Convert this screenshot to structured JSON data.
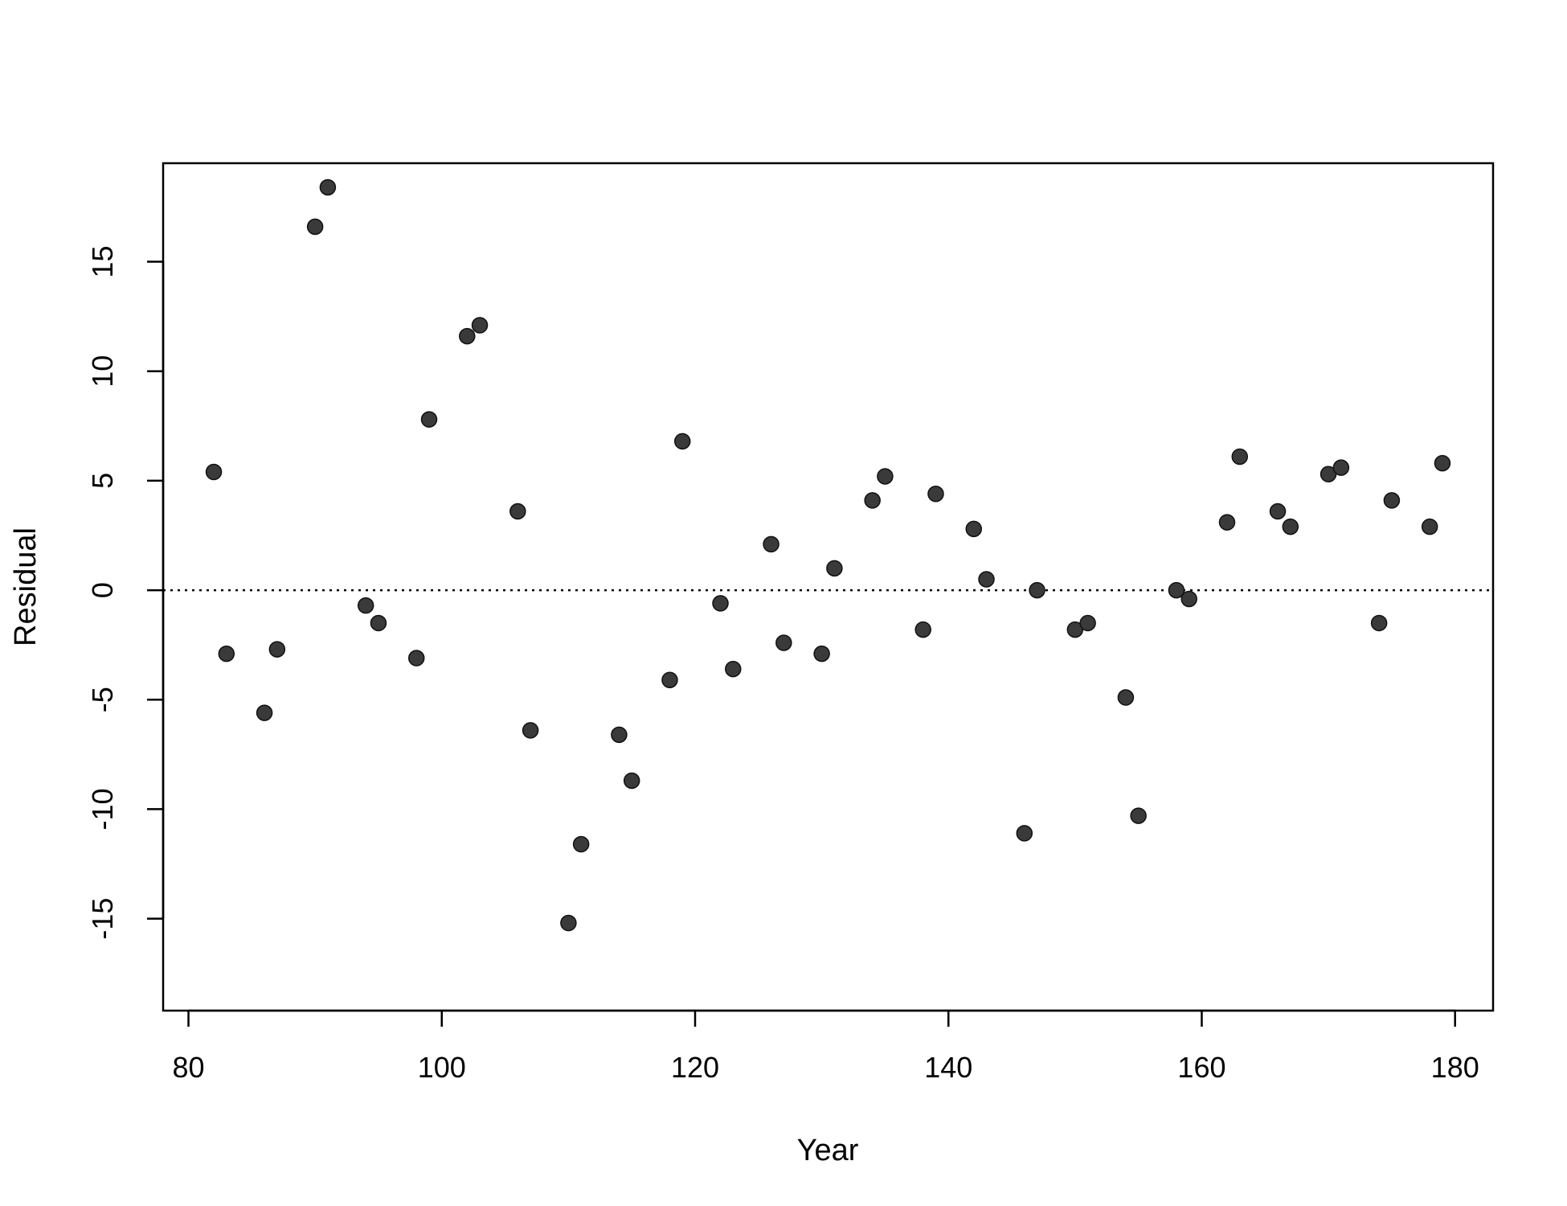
{
  "chart_data": {
    "type": "scatter",
    "title": "",
    "xlabel": "Year",
    "ylabel": "Residual",
    "xlim": [
      78,
      183
    ],
    "ylim": [
      -19.2,
      19.5
    ],
    "xticks": [
      80,
      100,
      120,
      140,
      160,
      180
    ],
    "yticks": [
      -15,
      -10,
      -5,
      0,
      5,
      10,
      15
    ],
    "reference_line": {
      "y": 0,
      "style": "dotted"
    },
    "grid": false,
    "legend": "none",
    "point_color": "#3a3a3a",
    "points": [
      {
        "x": 82,
        "y": 5.4
      },
      {
        "x": 83,
        "y": -2.9
      },
      {
        "x": 86,
        "y": -5.6
      },
      {
        "x": 87,
        "y": -2.7
      },
      {
        "x": 90,
        "y": 16.6
      },
      {
        "x": 91,
        "y": 18.4
      },
      {
        "x": 94,
        "y": -0.7
      },
      {
        "x": 95,
        "y": -1.5
      },
      {
        "x": 98,
        "y": -3.1
      },
      {
        "x": 99,
        "y": 7.8
      },
      {
        "x": 102,
        "y": 11.6
      },
      {
        "x": 103,
        "y": 12.1
      },
      {
        "x": 106,
        "y": 3.6
      },
      {
        "x": 107,
        "y": -6.4
      },
      {
        "x": 110,
        "y": -15.2
      },
      {
        "x": 111,
        "y": -11.6
      },
      {
        "x": 114,
        "y": -6.6
      },
      {
        "x": 115,
        "y": -8.7
      },
      {
        "x": 118,
        "y": -4.1
      },
      {
        "x": 119,
        "y": 6.8
      },
      {
        "x": 122,
        "y": -0.6
      },
      {
        "x": 123,
        "y": -3.6
      },
      {
        "x": 126,
        "y": 2.1
      },
      {
        "x": 127,
        "y": -2.4
      },
      {
        "x": 130,
        "y": -2.9
      },
      {
        "x": 131,
        "y": 1.0
      },
      {
        "x": 134,
        "y": 4.1
      },
      {
        "x": 135,
        "y": 5.2
      },
      {
        "x": 138,
        "y": -1.8
      },
      {
        "x": 139,
        "y": 4.4
      },
      {
        "x": 142,
        "y": 2.8
      },
      {
        "x": 143,
        "y": 0.5
      },
      {
        "x": 146,
        "y": -11.1
      },
      {
        "x": 147,
        "y": 0.0
      },
      {
        "x": 150,
        "y": -1.8
      },
      {
        "x": 151,
        "y": -1.5
      },
      {
        "x": 154,
        "y": -4.9
      },
      {
        "x": 155,
        "y": -10.3
      },
      {
        "x": 158,
        "y": 0.0
      },
      {
        "x": 159,
        "y": -0.4
      },
      {
        "x": 162,
        "y": 3.1
      },
      {
        "x": 163,
        "y": 6.1
      },
      {
        "x": 166,
        "y": 3.6
      },
      {
        "x": 167,
        "y": 2.9
      },
      {
        "x": 170,
        "y": 5.3
      },
      {
        "x": 171,
        "y": 5.6
      },
      {
        "x": 174,
        "y": -1.5
      },
      {
        "x": 175,
        "y": 4.1
      },
      {
        "x": 178,
        "y": 2.9
      },
      {
        "x": 179,
        "y": 5.8
      }
    ]
  }
}
